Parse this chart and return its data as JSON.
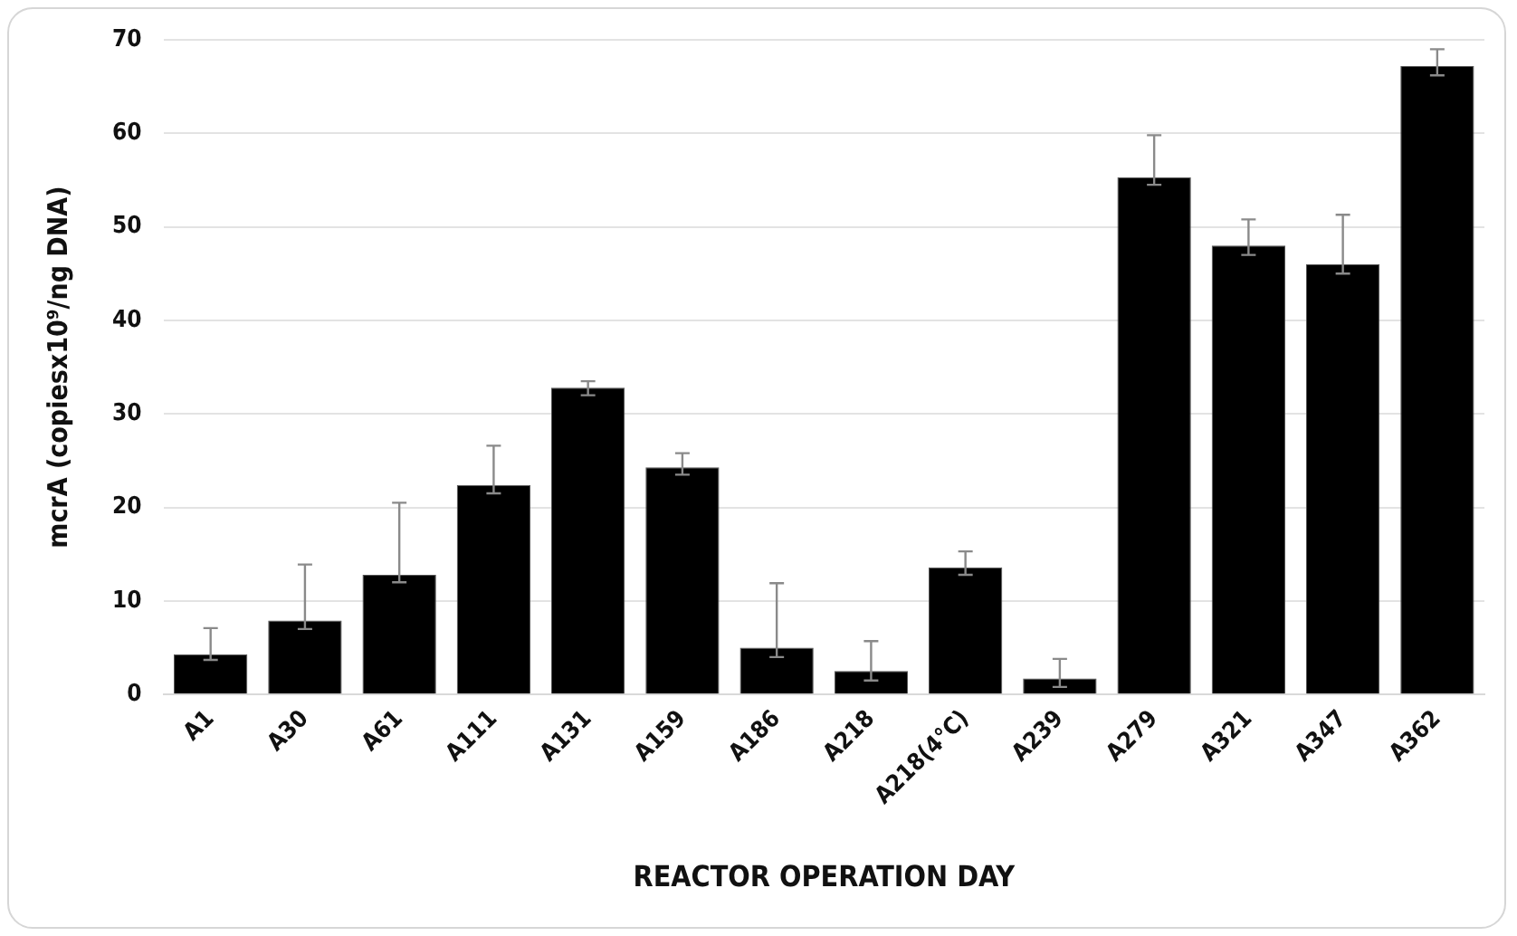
{
  "chart_data": {
    "type": "bar",
    "xlabel": "REACTOR OPERATION DAY",
    "ylabel": "mcrA (copiesx10⁹/ng DNA)",
    "categories": [
      "A1",
      "A30",
      "A61",
      "A111",
      "A131",
      "A159",
      "A186",
      "A218",
      "A218(4°C)",
      "A239",
      "A279",
      "A321",
      "A347",
      "A362"
    ],
    "values": [
      4.3,
      7.9,
      12.8,
      22.4,
      32.8,
      24.3,
      5.0,
      2.5,
      13.6,
      1.7,
      55.3,
      48.0,
      46.0,
      67.2
    ],
    "errors": [
      [
        3.7,
        7.1
      ],
      [
        7.0,
        13.9
      ],
      [
        12.0,
        20.5
      ],
      [
        21.5,
        26.6
      ],
      [
        32.0,
        33.5
      ],
      [
        23.5,
        25.8
      ],
      [
        4.0,
        11.9
      ],
      [
        1.5,
        5.7
      ],
      [
        12.8,
        15.3
      ],
      [
        0.8,
        3.8
      ],
      [
        54.5,
        59.8
      ],
      [
        47.0,
        50.8
      ],
      [
        45.0,
        51.3
      ],
      [
        66.2,
        69.0
      ]
    ],
    "color": "#000000",
    "ylim": [
      0,
      70
    ],
    "yticks": [
      0,
      10,
      20,
      30,
      40,
      50,
      60,
      70
    ],
    "grid": "y"
  }
}
